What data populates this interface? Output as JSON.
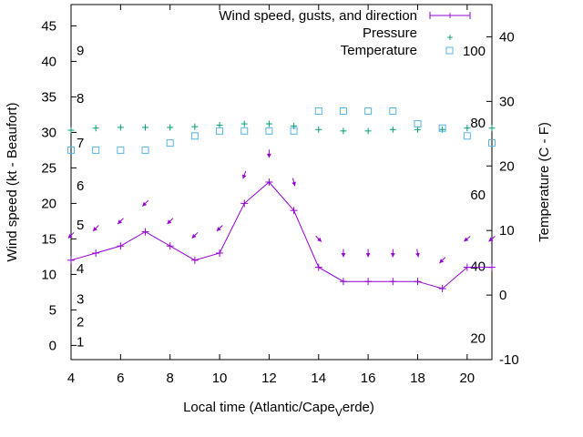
{
  "chart_data": {
    "type": "line",
    "xlabel": "Local time (Atlantic/Cape",
    "xlabel_sub": "V",
    "xlabel_tail": "erde)",
    "ylabel_left": "Wind speed (kt - Beaufort)",
    "ylabel_right": "Temperature (C - F)",
    "xlim": [
      4,
      21
    ],
    "ylim_left": [
      -2,
      48
    ],
    "ylim_right": [
      -10,
      45
    ],
    "x_ticks": [
      "4",
      "6",
      "8",
      "10",
      "12",
      "14",
      "16",
      "18",
      "20"
    ],
    "y_left_ticks": [
      "0",
      "5",
      "10",
      "15",
      "20",
      "25",
      "30",
      "35",
      "40",
      "45"
    ],
    "y_right_ticks": [
      "-10",
      "0",
      "10",
      "20",
      "30",
      "40"
    ],
    "beaufort_labels": [
      "1",
      "2",
      "3",
      "4",
      "5",
      "6",
      "7",
      "8",
      "9"
    ],
    "fahrenheit_labels": [
      "20",
      "40",
      "60",
      "80",
      "100"
    ],
    "legend": {
      "placement": "top-right",
      "wind": "Wind speed, gusts, and direction",
      "pressure": "Pressure",
      "temperature": "Temperature"
    },
    "colors": {
      "wind": "#9400d3",
      "pressure": "#009e73",
      "temperature": "#56b4e9"
    },
    "wind_speed": {
      "x": [
        4,
        5,
        6,
        7,
        8,
        9,
        10,
        11,
        12,
        13,
        14,
        15,
        16,
        17,
        18,
        19,
        20,
        21
      ],
      "y": [
        12,
        13,
        14,
        16,
        14,
        12,
        13,
        20,
        23,
        19,
        11,
        9,
        9,
        9,
        9,
        8,
        11,
        11
      ]
    },
    "wind_direction_arrows": {
      "x": [
        4,
        5,
        6,
        7,
        8,
        9,
        10,
        11,
        12,
        13,
        14,
        15,
        16,
        17,
        18,
        19,
        20,
        21
      ],
      "y": [
        15.5,
        16.5,
        17.5,
        20,
        17.5,
        15.5,
        16.5,
        24,
        27,
        23,
        15,
        13,
        13,
        13,
        13,
        12,
        15,
        15
      ],
      "toward_deg": [
        225,
        225,
        225,
        225,
        225,
        225,
        225,
        200,
        180,
        165,
        135,
        180,
        180,
        180,
        170,
        225,
        230,
        230
      ]
    },
    "pressure": {
      "x": [
        4,
        5,
        6,
        7,
        8,
        9,
        10,
        11,
        12,
        13,
        14,
        15,
        16,
        17,
        18,
        19,
        20,
        21
      ],
      "y": [
        30.3,
        30.6,
        30.7,
        30.7,
        30.7,
        30.8,
        31,
        31.2,
        31.2,
        30.9,
        30.4,
        30.2,
        30.2,
        30.4,
        30.4,
        30.4,
        30.6,
        30.6
      ]
    },
    "temperature": {
      "x": [
        4,
        5,
        6,
        7,
        8,
        9,
        10,
        11,
        12,
        13,
        14,
        15,
        16,
        17,
        18,
        19,
        20,
        21
      ],
      "y": [
        27.5,
        27.5,
        27.5,
        27.5,
        28.5,
        29.5,
        30.2,
        30.2,
        30.2,
        30.2,
        33,
        33,
        33,
        33,
        31.2,
        30.6,
        29.5,
        28.5
      ]
    }
  }
}
